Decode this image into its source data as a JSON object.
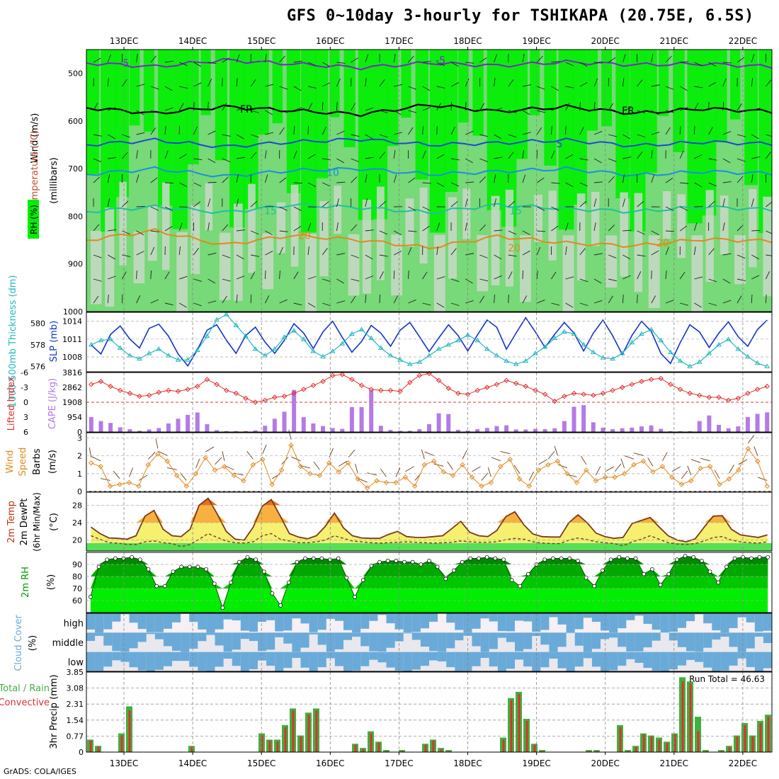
{
  "title": "GFS 0~10day 3-hourly for TSHIKAPA (20.75E, 6.5S)",
  "credit": "GrADS: COLA/IGES",
  "colors": {
    "rh_green": "#00ee00",
    "rh_mid": "#77d977",
    "rh_grey": "#c8d8c8",
    "slp": "#1533c8",
    "thickness": "#22b8c0",
    "lifted_index": "#e03030",
    "cape": "#b57ae6",
    "wind10m": "#e08a20",
    "temp": "#7a3a1a",
    "rh2m": "#009900",
    "cloud": "#6aaad8",
    "precip_total": "#40b040",
    "precip_conv": "#e03030"
  },
  "chart_data": [
    {
      "type": "heatmap",
      "name": "vertical-profile",
      "ylabel": "(millibars)",
      "legend_labels": [
        "Wind (m/s)",
        "Temperature (°C)",
        "RH (%)"
      ],
      "yticks": [
        500,
        600,
        700,
        800,
        900,
        1000
      ],
      "ylim": [
        450,
        1000
      ],
      "x_dates": [
        "13DEC",
        "14DEC",
        "15DEC",
        "16DEC",
        "17DEC",
        "18DEC",
        "19DEC",
        "20DEC",
        "21DEC",
        "22DEC"
      ],
      "isotherm_labels": [
        "-5",
        "FR",
        "5",
        "10",
        "15",
        "20",
        "25"
      ],
      "isotherms": [
        {
          "label": "-5",
          "level": [
            478,
            486,
            472,
            480,
            488,
            478,
            484,
            476,
            482,
            480,
            486
          ]
        },
        {
          "label": "FR",
          "level": [
            572,
            584,
            570,
            578,
            586,
            566,
            580,
            570,
            584,
            574,
            580
          ]
        },
        {
          "label": "5",
          "level": [
            650,
            640,
            654,
            644,
            638,
            650,
            646,
            640,
            652,
            644,
            648
          ]
        },
        {
          "label": "10",
          "level": [
            712,
            700,
            716,
            704,
            700,
            712,
            706,
            700,
            714,
            706,
            710
          ]
        },
        {
          "label": "15",
          "level": [
            790,
            780,
            792,
            776,
            782,
            792,
            776,
            784,
            790,
            780,
            786
          ]
        },
        {
          "label": "20",
          "level": [
            850,
            830,
            860,
            840,
            850,
            866,
            842,
            856,
            862,
            848,
            852
          ]
        }
      ]
    },
    {
      "type": "line",
      "name": "slp-thickness",
      "ylabel_left": "1000-500mb Thickness (dm)",
      "ylabel_right": "SLP (mb)",
      "left_ticks": [
        576,
        578,
        580
      ],
      "right_ticks": [
        1008,
        1011,
        1014
      ],
      "series": [
        {
          "name": "SLP",
          "axis": "right",
          "values": [
            1010.0,
            1008.5,
            1011.8,
            1013.2,
            1011.0,
            1009.5,
            1012.8,
            1013.5,
            1011.5,
            1008.5,
            1006.5,
            1009.2,
            1012.5,
            1013.4,
            1010.8,
            1008.6,
            1011.6,
            1013.0,
            1010.5,
            1008.6,
            1010.8,
            1013.6,
            1012.0,
            1009.4,
            1012.2,
            1014.0,
            1011.3,
            1008.8,
            1010.6,
            1013.3,
            1012.0,
            1009.8,
            1012.5,
            1013.8,
            1011.4,
            1008.9,
            1011.2,
            1013.4,
            1011.6,
            1009.0,
            1011.7,
            1014.2,
            1013.0,
            1009.3,
            1012.0,
            1014.6,
            1012.2,
            1009.6,
            1011.8,
            1013.8,
            1012.0,
            1009.0,
            1012.0,
            1014.2,
            1011.6,
            1008.4,
            1011.6,
            1014.0,
            1012.3,
            1008.6,
            1006.9,
            1010.4,
            1013.4,
            1012.2,
            1009.6,
            1012.0,
            1013.9,
            1011.4,
            1009.8,
            1012.6,
            1014.2
          ]
        },
        {
          "name": "Thickness",
          "axis": "left",
          "values": [
            578.0,
            578.4,
            578.5,
            577.7,
            577.0,
            576.7,
            577.2,
            577.6,
            577.0,
            576.6,
            576.6,
            577.5,
            578.8,
            580.3,
            580.8,
            579.8,
            578.8,
            577.6,
            577.0,
            577.6,
            578.7,
            579.3,
            578.5,
            577.4,
            576.9,
            577.4,
            578.1,
            579.0,
            579.4,
            578.6,
            577.7,
            577.0,
            576.6,
            576.2,
            576.4,
            577.0,
            577.6,
            578.0,
            578.4,
            578.9,
            578.4,
            577.6,
            577.0,
            576.5,
            576.2,
            576.5,
            577.2,
            577.8,
            578.6,
            579.2,
            579.0,
            578.0,
            577.3,
            576.8,
            576.7,
            577.2,
            578.2,
            579.0,
            579.4,
            578.4,
            577.3,
            576.5,
            576.0,
            576.4,
            577.2,
            578.0,
            578.5,
            577.6,
            576.9,
            576.3,
            576.0
          ]
        }
      ]
    },
    {
      "type": "bar",
      "name": "cape-lifted-index",
      "ylabel_left": "Lifted Index",
      "ylabel_right": "CAPE (J/kg)",
      "li_ticks": [
        -6,
        -3,
        0,
        3,
        6
      ],
      "cape_ticks": [
        0,
        954,
        1908,
        2862,
        3816
      ],
      "series": [
        {
          "name": "Lifted Index",
          "values": [
            -3.6,
            -4.2,
            -3.2,
            -2.4,
            -1.8,
            -1.2,
            -1.4,
            -2.0,
            -2.4,
            -2.2,
            -2.6,
            -3.2,
            -4.6,
            -3.6,
            -2.4,
            -1.8,
            -0.8,
            0.0,
            -0.4,
            -1.0,
            -1.2,
            -1.8,
            -2.6,
            -3.4,
            -4.2,
            -5.4,
            -5.6,
            -4.6,
            -3.4,
            -2.6,
            -2.4,
            -2.4,
            -2.2,
            -4.0,
            -5.4,
            -5.8,
            -4.4,
            -2.8,
            -1.8,
            -1.6,
            -2.4,
            -3.0,
            -3.6,
            -4.4,
            -3.8,
            -3.2,
            -2.4,
            -1.6,
            -0.2,
            -1.2,
            -1.8,
            -1.6,
            -1.4,
            -1.8,
            -2.4,
            -3.0,
            -3.6,
            -4.2,
            -4.6,
            -4.8,
            -3.6,
            -2.6,
            -1.8,
            -1.4,
            -1.0,
            -1.0,
            -0.4,
            -0.8,
            -1.8,
            -2.6,
            -3.2
          ]
        },
        {
          "name": "CAPE",
          "values": [
            954,
            700,
            580,
            300,
            180,
            80,
            160,
            250,
            550,
            850,
            1100,
            1250,
            500,
            120,
            60,
            60,
            60,
            100,
            400,
            850,
            1300,
            2700,
            950,
            550,
            380,
            250,
            200,
            1600,
            1600,
            2680,
            400,
            130,
            80,
            80,
            180,
            500,
            1200,
            1150,
            140,
            90,
            180,
            260,
            380,
            420,
            160,
            160,
            200,
            180,
            240,
            700,
            1620,
            1720,
            620,
            280,
            180,
            240,
            280,
            360,
            420,
            200,
            50,
            50,
            50,
            700,
            1060,
            460,
            240,
            360,
            960,
            1160,
            1260
          ]
        }
      ]
    },
    {
      "type": "line",
      "name": "wind10m",
      "ylabel": "10m Wind Speed & Barbs (m/s)",
      "yticks": [
        0,
        1,
        2,
        3
      ],
      "series": [
        {
          "name": "10m Wind Speed",
          "values": [
            1.6,
            1.4,
            0.3,
            0.4,
            0.5,
            0.3,
            1.5,
            2.1,
            1.7,
            0.9,
            0.3,
            1.0,
            1.9,
            1.2,
            1.4,
            0.9,
            0.6,
            1.5,
            1.8,
            0.4,
            1.2,
            2.6,
            1.4,
            1.0,
            0.9,
            1.6,
            1.1,
            1.6,
            0.7,
            0.2,
            0.6,
            0.5,
            0.5,
            0.8,
            0.3,
            1.5,
            1.7,
            1.1,
            0.9,
            1.5,
            0.8,
            0.3,
            0.5,
            1.4,
            1.8,
            0.7,
            0.3,
            1.2,
            1.5,
            1.7,
            1.0,
            0.5,
            1.2,
            0.6,
            0.8,
            0.8,
            1.0,
            1.5,
            1.7,
            1.1,
            1.4,
            0.8,
            0.4,
            0.6,
            1.3,
            1.4,
            0.4,
            0.7,
            1.2,
            2.4,
            1.7,
            0.3
          ]
        }
      ]
    },
    {
      "type": "area",
      "name": "temperature",
      "ylabel": "2m Temp / 2m DewPt (6hr Min/Max) (°C)",
      "yticks": [
        20,
        24,
        28
      ],
      "series": [
        {
          "name": "2m Temp",
          "values": [
            23,
            21.5,
            20.5,
            20.4,
            20.2,
            21,
            25.5,
            26.8,
            22.5,
            21,
            20.8,
            22.5,
            28,
            29.6,
            26,
            22,
            20.2,
            20,
            23,
            27.8,
            29.3,
            25.5,
            21.5,
            20.7,
            20.3,
            21,
            23.2,
            26.2,
            22.8,
            21,
            20.5,
            20.4,
            20.4,
            21.3,
            22,
            20.8,
            20.6,
            20.6,
            20.8,
            21,
            22.6,
            24.3,
            21.8,
            21,
            20.8,
            22.2,
            25.4,
            26.5,
            23.5,
            21.4,
            20.8,
            20.7,
            20.7,
            24,
            25.8,
            24,
            21.6,
            20.8,
            20.4,
            20.6,
            23.8,
            24.5,
            25.2,
            23,
            21,
            20,
            19.6,
            20.3,
            23,
            25.5,
            25.6,
            22.5,
            21.2,
            20.9,
            20.6,
            21.2
          ]
        },
        {
          "name": "2m DewPt",
          "values": [
            21,
            20.2,
            19.4,
            19.3,
            19.0,
            19.0,
            19.6,
            19.8,
            19.4,
            19.2,
            18.5,
            19.0,
            20.2,
            21.5,
            20.6,
            19.8,
            19.4,
            19.3,
            19.6,
            21.0,
            21.5,
            20.2,
            19.8,
            19.4,
            19.4,
            19.6,
            20.0,
            21.0,
            20.4,
            19.8,
            19.6,
            19.4,
            19.3,
            19.4,
            19.5,
            19.6,
            19.5,
            19.4,
            19.3,
            19.4,
            19.5,
            19.8,
            19.6,
            19.5,
            19.5,
            19.6,
            20.1,
            20.4,
            20.2,
            19.6,
            19.3,
            19.2,
            19.2,
            20.0,
            20.5,
            20.1,
            19.6,
            19.4,
            19.2,
            18.7,
            19.6,
            20.2,
            21.0,
            20.2,
            19.4,
            19.1,
            19.0,
            19.2,
            19.8,
            20.6,
            20.8,
            20.0,
            19.6,
            19.4,
            19.3,
            19.6
          ]
        }
      ]
    },
    {
      "type": "area",
      "name": "rh2m",
      "ylabel": "2m RH (%)",
      "yticks": [
        60,
        70,
        80,
        90
      ],
      "series": [
        {
          "name": "2m RH",
          "values": [
            63,
            88,
            94,
            95,
            95,
            96,
            94,
            86,
            72,
            72,
            84,
            88,
            88,
            88,
            86,
            74,
            54,
            75,
            92,
            96,
            94,
            84,
            66,
            56,
            75,
            92,
            95,
            95,
            95,
            94,
            95,
            79,
            63,
            77,
            89,
            92,
            93,
            93,
            92,
            92,
            90,
            93,
            88,
            78,
            85,
            92,
            95,
            95,
            96,
            95,
            94,
            77,
            72,
            82,
            90,
            94,
            95,
            95,
            95,
            93,
            79,
            72,
            85,
            94,
            96,
            95,
            95,
            82,
            86,
            73,
            82,
            94,
            97,
            96,
            93,
            84,
            75,
            88,
            95,
            96,
            95,
            96,
            96
          ]
        }
      ]
    },
    {
      "type": "heatmap",
      "name": "cloud-cover",
      "ylabel": "Cloud Cover (%)",
      "rows": [
        "high",
        "middle",
        "low"
      ]
    },
    {
      "type": "bar",
      "name": "precip",
      "ylabel": "3hr Precip (mm)",
      "left_labels": [
        "Total / Rain",
        "Convective"
      ],
      "yticks": [
        0,
        0.77,
        1.54,
        2.31,
        3.08,
        3.85
      ],
      "run_total_label": "Run Total = 46.63",
      "series": [
        {
          "name": "Total",
          "values": [
            0.6,
            0.3,
            0,
            0,
            0.9,
            2.2,
            0,
            0,
            0,
            0,
            0,
            0,
            0,
            0.3,
            0,
            0,
            0,
            0,
            0,
            0,
            0,
            0,
            0.9,
            0.6,
            0.6,
            1.3,
            2.1,
            0.8,
            1.9,
            2.1,
            0,
            0,
            0,
            0,
            0.4,
            0.2,
            1.0,
            0.5,
            0.1,
            0,
            0.1,
            0,
            0,
            0.4,
            0.6,
            0.2,
            0.1,
            0,
            0,
            0,
            0,
            0,
            0,
            0.7,
            2.6,
            2.9,
            1.6,
            0.4,
            0.1,
            0,
            0,
            0,
            0,
            0,
            0.1,
            0.1,
            0,
            0,
            1.3,
            0.1,
            0.3,
            0.9,
            0.8,
            0.7,
            0.5,
            0.9,
            3.6,
            3.4,
            1.7,
            0.1,
            0,
            0.1,
            0.3,
            0.8,
            1.4,
            0.8,
            1.5,
            1.8
          ]
        },
        {
          "name": "Convective",
          "values": [
            0.55,
            0.25,
            0,
            0,
            0.8,
            2.0,
            0,
            0,
            0,
            0,
            0,
            0,
            0,
            0.25,
            0,
            0,
            0,
            0,
            0,
            0,
            0,
            0,
            0.8,
            0.55,
            0.5,
            1.2,
            2.0,
            0.75,
            1.8,
            2.0,
            0,
            0,
            0,
            0,
            0.35,
            0.15,
            0.9,
            0.45,
            0.05,
            0,
            0.05,
            0,
            0,
            0.35,
            0.55,
            0.15,
            0.05,
            0,
            0,
            0,
            0,
            0,
            0,
            0.6,
            2.5,
            2.8,
            1.5,
            0.35,
            0.05,
            0,
            0,
            0,
            0,
            0,
            0.05,
            0.05,
            0,
            0,
            1.2,
            0.05,
            0.25,
            0.85,
            0.75,
            0.6,
            0.45,
            0.85,
            3.4,
            3.3,
            1.0,
            0.05,
            0,
            0.05,
            0.25,
            0.75,
            1.3,
            0.75,
            1.4,
            1.7
          ]
        }
      ]
    }
  ]
}
